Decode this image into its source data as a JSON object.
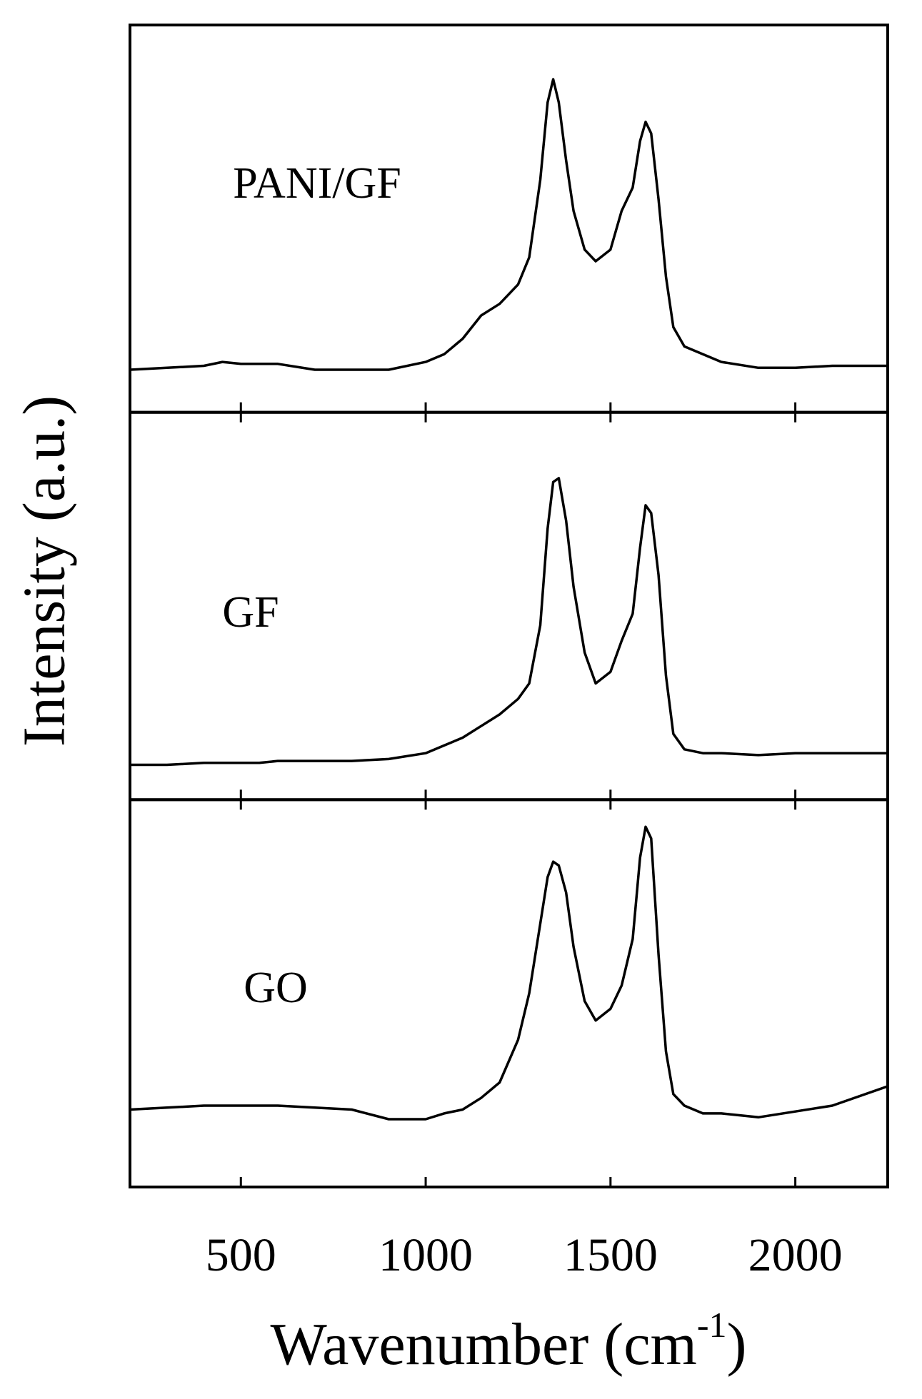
{
  "chart_data": {
    "type": "line",
    "xlabel": [
      "Wavenumber (cm",
      "-1",
      ")"
    ],
    "ylabel": "Intensity (a.u.)",
    "x": [
      200,
      300,
      400,
      450,
      500,
      550,
      600,
      700,
      800,
      900,
      1000,
      1050,
      1100,
      1150,
      1200,
      1250,
      1280,
      1310,
      1330,
      1345,
      1360,
      1380,
      1400,
      1430,
      1460,
      1500,
      1530,
      1560,
      1580,
      1595,
      1610,
      1630,
      1650,
      1670,
      1700,
      1750,
      1800,
      1900,
      2000,
      2100,
      2250
    ],
    "xlim": [
      200,
      2250
    ],
    "xticks": [
      500,
      1000,
      1500,
      2000
    ],
    "ylim": [
      0,
      100
    ],
    "series": [
      {
        "name": "PANI/GF",
        "color": "#000000",
        "values": [
          11,
          11.5,
          12,
          13,
          12.5,
          12.5,
          12.5,
          11,
          11,
          11,
          13,
          15,
          19,
          25,
          28,
          33,
          40,
          60,
          80,
          86,
          80,
          65,
          52,
          42,
          39,
          42,
          52,
          58,
          70,
          75,
          72,
          55,
          35,
          22,
          17,
          15,
          13,
          11.5,
          11.5,
          12,
          12
        ]
      },
      {
        "name": "GF",
        "color": "#000000",
        "values": [
          9,
          9,
          9.5,
          9.5,
          9.5,
          9.5,
          10,
          10,
          10,
          10.5,
          12,
          14,
          16,
          19,
          22,
          26,
          30,
          45,
          70,
          82,
          83,
          72,
          55,
          38,
          30,
          33,
          41,
          48,
          65,
          76,
          74,
          58,
          32,
          17,
          13,
          12,
          12,
          11.5,
          12,
          12,
          12
        ]
      },
      {
        "name": "GO",
        "color": "#000000",
        "values": [
          20,
          20.5,
          21,
          21,
          21,
          21,
          21,
          20.5,
          20,
          17.5,
          17.5,
          19,
          20,
          23,
          27,
          38,
          50,
          68,
          80,
          84,
          83,
          76,
          62,
          48,
          43,
          46,
          52,
          64,
          85,
          93,
          90,
          60,
          35,
          24,
          21,
          19,
          19,
          18,
          19.5,
          21,
          26
        ]
      }
    ]
  }
}
